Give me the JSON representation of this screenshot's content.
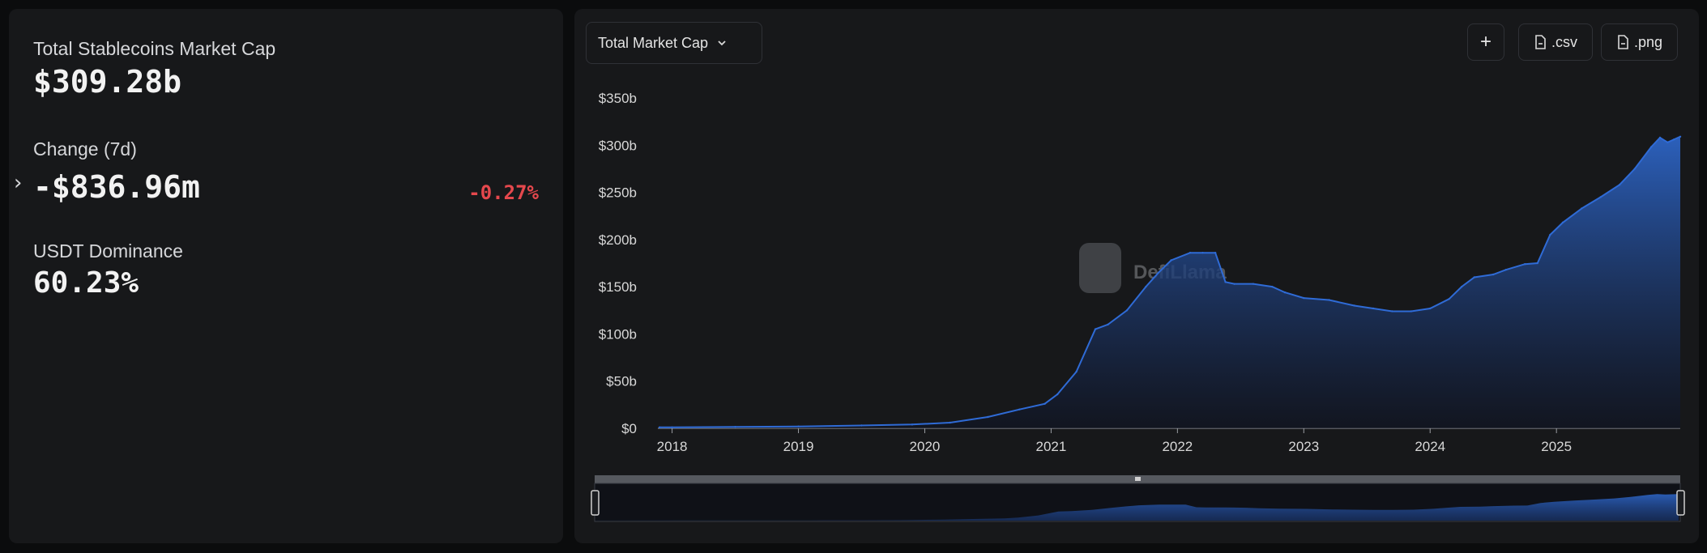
{
  "stats": {
    "mcap_label": "Total Stablecoins Market Cap",
    "mcap_value": "$309.28b",
    "change_label": "Change (7d)",
    "change_value": "-$836.96m",
    "change_pct": "-0.27%",
    "dominance_label": "USDT Dominance",
    "dominance_value": "60.23%"
  },
  "toolbar": {
    "dropdown_label": "Total Market Cap",
    "add_label": "+",
    "csv_label": ".csv",
    "png_label": ".png"
  },
  "watermark": "DefiLlama",
  "colors": {
    "accent": "#2d64c4",
    "negative": "#e5484d",
    "panel": "#17181a",
    "background": "#0b0c0d"
  },
  "chart_data": {
    "type": "area",
    "title": "",
    "xlabel": "",
    "ylabel": "",
    "x_ticks": [
      "2018",
      "2019",
      "2020",
      "2021",
      "2022",
      "2023",
      "2024",
      "2025"
    ],
    "y_ticks": [
      "$0",
      "$50b",
      "$100b",
      "$150b",
      "$200b",
      "$250b",
      "$300b",
      "$350b"
    ],
    "ylim": [
      0,
      350
    ],
    "y_unit": "billions USD",
    "grid": false,
    "legend": "none",
    "series": [
      {
        "x": [
          2017.9,
          2018.0,
          2018.5,
          2019.0,
          2019.5,
          2019.9,
          2020.2,
          2020.5,
          2020.75,
          2020.95,
          2021.05,
          2021.2,
          2021.35,
          2021.45,
          2021.6,
          2021.75,
          2021.85,
          2021.95,
          2022.1,
          2022.2,
          2022.3,
          2022.38,
          2022.45,
          2022.6,
          2022.75,
          2022.85,
          2023.0,
          2023.2,
          2023.4,
          2023.55,
          2023.7,
          2023.85,
          2024.0,
          2024.15,
          2024.25,
          2024.35,
          2024.5,
          2024.6,
          2024.75,
          2024.85,
          2024.95,
          2025.05,
          2025.2,
          2025.35,
          2025.5,
          2025.62,
          2025.75,
          2025.82,
          2025.88,
          2025.93,
          2025.98
        ],
        "values": [
          1,
          1,
          1.5,
          2,
          3,
          4,
          6,
          12,
          20,
          26,
          36,
          60,
          105,
          110,
          125,
          150,
          165,
          178,
          186,
          186,
          186,
          155,
          153,
          153,
          150,
          144,
          138,
          136,
          130,
          127,
          124,
          124,
          127,
          137,
          150,
          160,
          163,
          168,
          174,
          175,
          205,
          218,
          233,
          245,
          258,
          275,
          298,
          308,
          303,
          306,
          309
        ]
      }
    ]
  }
}
